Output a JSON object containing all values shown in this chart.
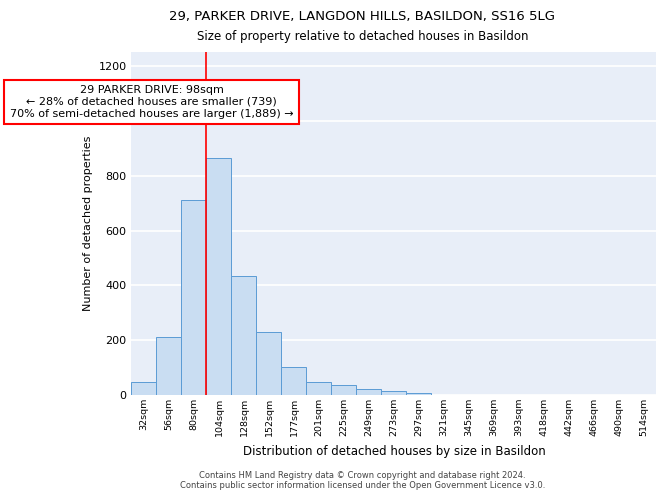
{
  "title1": "29, PARKER DRIVE, LANGDON HILLS, BASILDON, SS16 5LG",
  "title2": "Size of property relative to detached houses in Basildon",
  "xlabel": "Distribution of detached houses by size in Basildon",
  "ylabel": "Number of detached properties",
  "categories": [
    "32sqm",
    "56sqm",
    "80sqm",
    "104sqm",
    "128sqm",
    "152sqm",
    "177sqm",
    "201sqm",
    "225sqm",
    "249sqm",
    "273sqm",
    "297sqm",
    "321sqm",
    "345sqm",
    "369sqm",
    "393sqm",
    "418sqm",
    "442sqm",
    "466sqm",
    "490sqm",
    "514sqm"
  ],
  "values": [
    47,
    210,
    710,
    865,
    435,
    230,
    103,
    47,
    37,
    22,
    15,
    9,
    0,
    0,
    0,
    0,
    0,
    0,
    0,
    0,
    0
  ],
  "bar_color": "#c9ddf2",
  "bar_edge_color": "#5b9bd5",
  "annotation_text": "29 PARKER DRIVE: 98sqm\n← 28% of detached houses are smaller (739)\n70% of semi-detached houses are larger (1,889) →",
  "footer": "Contains HM Land Registry data © Crown copyright and database right 2024.\nContains public sector information licensed under the Open Government Licence v3.0.",
  "ylim": [
    0,
    1250
  ],
  "yticks": [
    0,
    200,
    400,
    600,
    800,
    1000,
    1200
  ],
  "background_color": "#e8eef8",
  "grid_color": "white"
}
